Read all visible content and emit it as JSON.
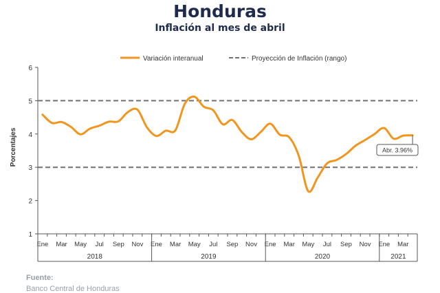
{
  "header": {
    "title": "Honduras",
    "subtitle": "Inflación al mes de abril"
  },
  "source": {
    "label": "Fuente:",
    "text": "Banco Central de Honduras"
  },
  "chart_data": {
    "type": "line",
    "ylabel": "Porcentajes",
    "ylim": [
      1,
      6
    ],
    "yticks": [
      1,
      2,
      3,
      4,
      5,
      6
    ],
    "grid": false,
    "legend_position": "top",
    "month_labels": [
      "Ene",
      "Mar",
      "May",
      "Jul",
      "Sep",
      "Nov",
      "Ene",
      "Mar",
      "May",
      "Jul",
      "Sep",
      "Nov",
      "Ene",
      "Mar",
      "May",
      "Jul",
      "Sep",
      "Nov",
      "Ene",
      "Mar"
    ],
    "years": [
      "2018",
      "2019",
      "2020",
      "2021"
    ],
    "series": [
      {
        "name": "Variación interanual",
        "color": "#f0961e",
        "style": "solid",
        "x": [
          "2018-01",
          "2018-02",
          "2018-03",
          "2018-04",
          "2018-05",
          "2018-06",
          "2018-07",
          "2018-08",
          "2018-09",
          "2018-10",
          "2018-11",
          "2018-12",
          "2019-01",
          "2019-02",
          "2019-03",
          "2019-04",
          "2019-05",
          "2019-06",
          "2019-07",
          "2019-08",
          "2019-09",
          "2019-10",
          "2019-11",
          "2019-12",
          "2020-01",
          "2020-02",
          "2020-03",
          "2020-04",
          "2020-05",
          "2020-06",
          "2020-07",
          "2020-08",
          "2020-09",
          "2020-10",
          "2020-11",
          "2020-12",
          "2021-01",
          "2021-02",
          "2021-03",
          "2021-04"
        ],
        "values": [
          4.58,
          4.33,
          4.36,
          4.21,
          3.99,
          4.16,
          4.25,
          4.37,
          4.38,
          4.66,
          4.73,
          4.2,
          3.94,
          4.1,
          4.11,
          4.91,
          5.12,
          4.82,
          4.71,
          4.29,
          4.42,
          4.06,
          3.84,
          4.06,
          4.31,
          3.98,
          3.9,
          3.35,
          2.28,
          2.69,
          3.12,
          3.22,
          3.4,
          3.65,
          3.82,
          4.0,
          4.18,
          3.86,
          3.95,
          3.96
        ]
      },
      {
        "name": "Proyección de Inflación (rango)",
        "color": "#707070",
        "style": "dashed",
        "lines": [
          3,
          5
        ]
      }
    ],
    "annotation": {
      "text": "Abr. 3.96%",
      "x": "2021-04",
      "value": 3.96
    }
  }
}
